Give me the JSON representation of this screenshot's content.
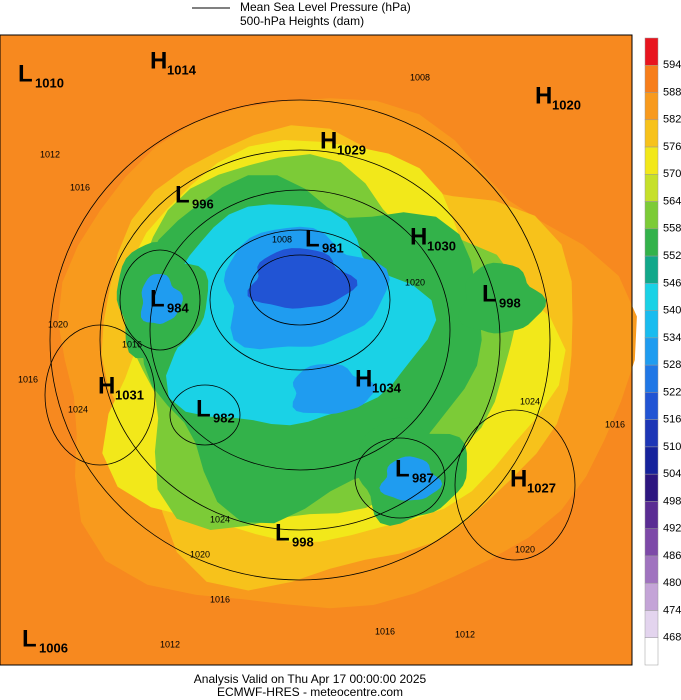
{
  "header": {
    "legend": [
      "Mean Sea Level Pressure (hPa)",
      "500-hPa Heights (dam)"
    ]
  },
  "systems": [
    {
      "letter": "L",
      "pressure": 1010
    },
    {
      "letter": "H",
      "pressure": 1014
    },
    {
      "letter": "H",
      "pressure": 1029
    },
    {
      "letter": "H",
      "pressure": 1020
    },
    {
      "letter": "L",
      "pressure": 996
    },
    {
      "letter": "L",
      "pressure": 981
    },
    {
      "letter": "H",
      "pressure": 1030
    },
    {
      "letter": "L",
      "pressure": 984
    },
    {
      "letter": "L",
      "pressure": 998
    },
    {
      "letter": "H",
      "pressure": 1031
    },
    {
      "letter": "H",
      "pressure": 1034
    },
    {
      "letter": "L",
      "pressure": 982
    },
    {
      "letter": "H",
      "pressure": 1027
    },
    {
      "letter": "L",
      "pressure": 987
    },
    {
      "letter": "L",
      "pressure": 998
    },
    {
      "letter": "L",
      "pressure": 1006
    }
  ],
  "isobar_labels": [
    1012,
    1016,
    1020,
    1024,
    1016,
    1008,
    1016,
    1020,
    1024,
    1016,
    1012,
    1012,
    1016,
    1020,
    1024,
    1016,
    1008,
    1020
  ],
  "colorbar": {
    "ticks": [
      594,
      588,
      582,
      576,
      570,
      564,
      558,
      552,
      546,
      540,
      534,
      528,
      522,
      516,
      510,
      504,
      498,
      492,
      486,
      480,
      474,
      468
    ],
    "colors": [
      "#e8151f",
      "#f77e1b",
      "#f89a1d",
      "#f7c21b",
      "#f2e81a",
      "#c6e02a",
      "#7ccb37",
      "#33b24a",
      "#12a88a",
      "#1ad2e6",
      "#19bcef",
      "#1f9cf0",
      "#2077e6",
      "#2154d4",
      "#1d36b6",
      "#16229c",
      "#2d1680",
      "#5a2c93",
      "#7d49a8",
      "#a073bf",
      "#c4a4d7",
      "#e3d4ee",
      "#ffffff"
    ]
  },
  "footer": [
    "Analysis Valid on Thu Apr 17 00:00:00 2025",
    "ECMWF-HRES  - meteocentre.com"
  ]
}
